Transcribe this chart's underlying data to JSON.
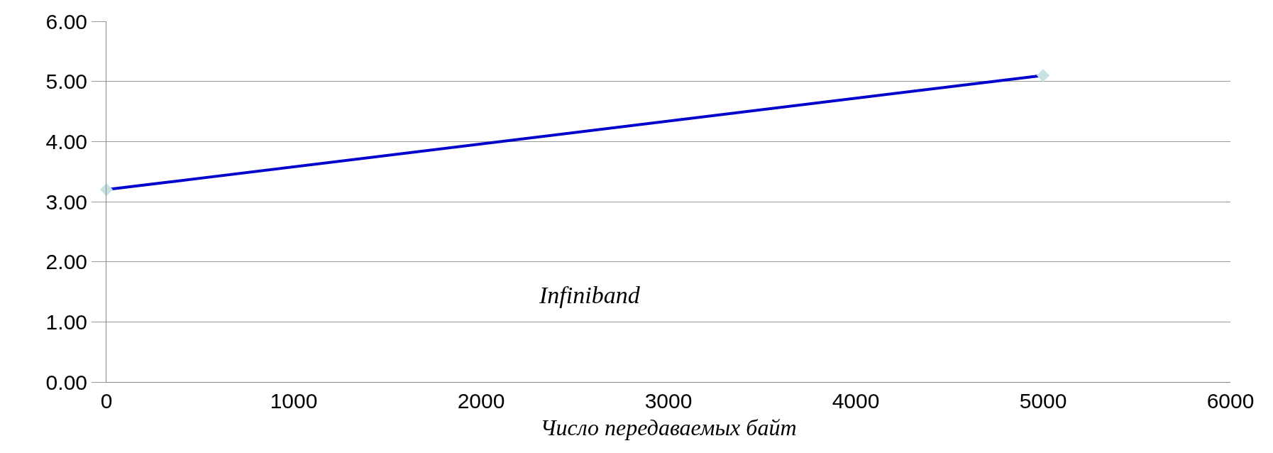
{
  "chart_data": {
    "type": "line",
    "xlabel": "Число передаваемых байт",
    "annotations": [
      "Infiniband"
    ],
    "x": [
      0,
      5000
    ],
    "series": [
      {
        "color": "#0000cc",
        "values": [
          3.2,
          5.1
        ]
      }
    ],
    "xlim": [
      0,
      6000
    ],
    "xticks": [
      0,
      1000,
      2000,
      3000,
      4000,
      5000,
      6000
    ],
    "ylim": [
      0,
      6
    ],
    "yticks": [
      {
        "value": 0,
        "label": "0.00"
      },
      {
        "value": 1,
        "label": "1.00"
      },
      {
        "value": 2,
        "label": "2.00"
      },
      {
        "value": 3,
        "label": "3.00"
      },
      {
        "value": 4,
        "label": "4.00"
      },
      {
        "value": 5,
        "label": "5.00"
      },
      {
        "value": 6,
        "label": "6.00"
      }
    ],
    "grid": "y",
    "marker": "diamond",
    "line_style": "solid",
    "legend": false
  }
}
